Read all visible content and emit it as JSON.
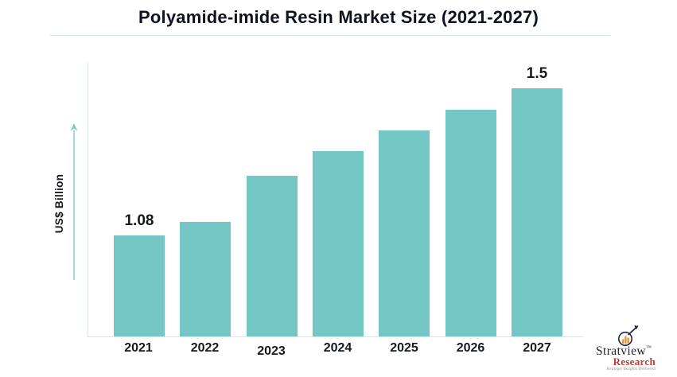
{
  "header": {
    "title": "Polyamide-imide Resin Market Size (2021-2027)"
  },
  "chart_data": {
    "type": "bar",
    "title": "Polyamide-imide Resin Market Size (2021-2027)",
    "xlabel": "",
    "ylabel": "US$ Billion",
    "categories": [
      "2021",
      "2022",
      "2023",
      "2024",
      "2025",
      "2026",
      "2027"
    ],
    "values": [
      1.08,
      1.12,
      1.25,
      1.32,
      1.38,
      1.44,
      1.5
    ],
    "data_labels": {
      "2021": "1.08",
      "2027": "1.5"
    },
    "bar_color": "#74c7c5",
    "axis_line_color": "#d9e6e8",
    "arrow_color": "#7bc8c5",
    "gridlines": false,
    "legend": false,
    "y_ticks_shown": false
  },
  "branding": {
    "name": "Stratview",
    "trademark": "™",
    "name2": "Research",
    "tagline": "Strategic Insights Delivered",
    "name_color": "#20203a",
    "name2_color": "#c2392e",
    "icon_bar_color": "#e8912f"
  }
}
